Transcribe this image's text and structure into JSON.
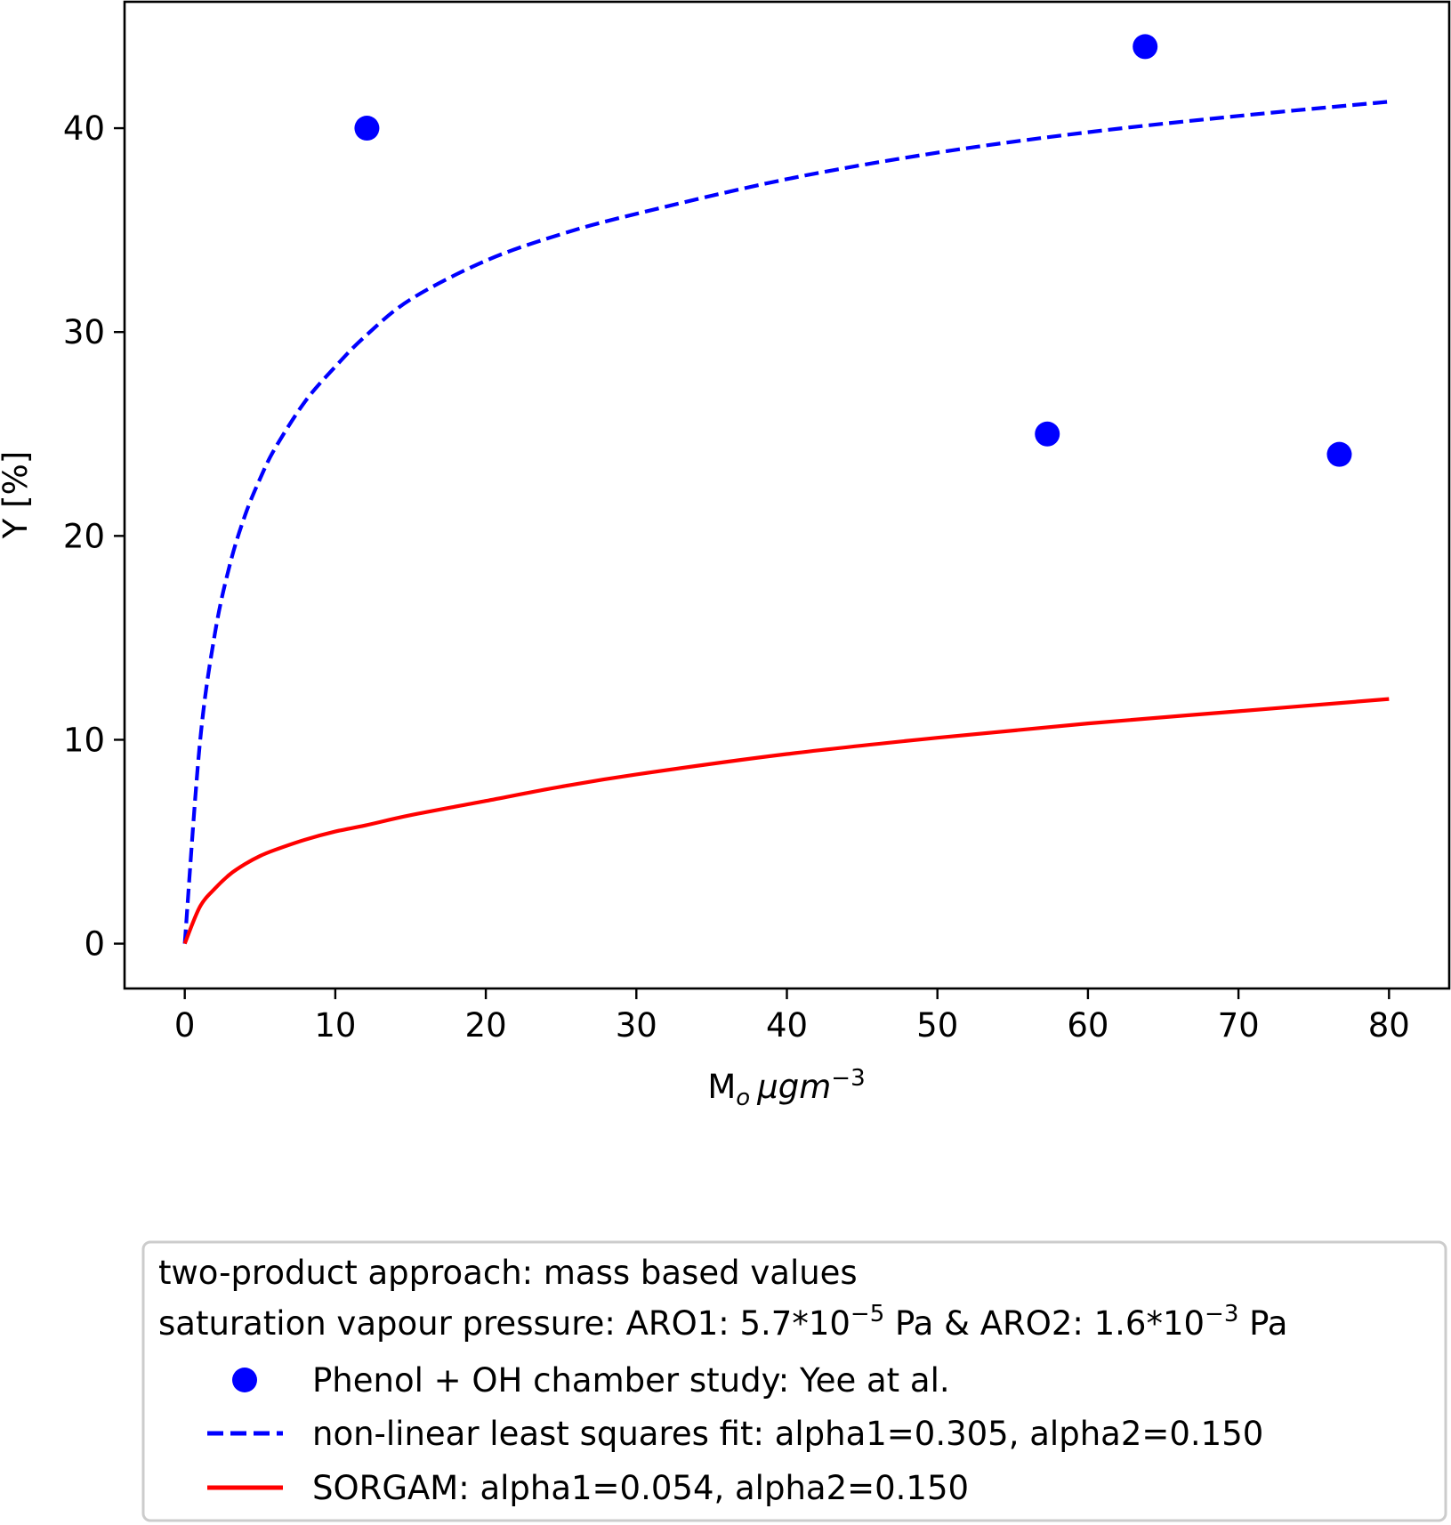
{
  "chart_data": {
    "type": "line",
    "xlabel": "M",
    "xlabel_sub": "o",
    "xlabel_unit": "μgm",
    "xlabel_unit_sup": "−3",
    "ylabel": "Y [%]",
    "xlim": [
      -4,
      84
    ],
    "ylim": [
      -2.2,
      46.2
    ],
    "xticks": [
      0,
      10,
      20,
      30,
      40,
      50,
      60,
      70,
      80
    ],
    "yticks": [
      0,
      10,
      20,
      30,
      40
    ],
    "grid": false,
    "legend": {
      "placement": "below plot",
      "title_line1": "two-product approach: mass based values",
      "title_line2": {
        "prefix": "saturation vapour pressure: ARO1: 5.7*10",
        "sup1": "−5",
        "middle": " Pa & ARO2: 1.6*10",
        "sup2": "−3",
        "suffix": " Pa"
      }
    },
    "series": [
      {
        "name": "Phenol + OH chamber study: Yee at al.",
        "kind": "scatter",
        "color": "#0000ff",
        "x": [
          12.1,
          57.3,
          63.8,
          76.7
        ],
        "y": [
          40.0,
          25.0,
          44.0,
          24.0
        ]
      },
      {
        "name": "non-linear least squares fit: alpha1=0.305, alpha2=0.150",
        "kind": "line",
        "style": "dashed",
        "color": "#0000ff",
        "x": [
          0,
          1,
          2,
          3,
          4,
          5,
          6,
          8,
          10,
          12,
          15,
          20,
          25,
          30,
          40,
          50,
          60,
          70,
          80
        ],
        "y": [
          0,
          9.8,
          15.2,
          18.6,
          21.0,
          22.8,
          24.3,
          26.6,
          28.3,
          29.8,
          31.6,
          33.5,
          34.8,
          35.8,
          37.5,
          38.8,
          39.8,
          40.6,
          41.3
        ]
      },
      {
        "name": "SORGAM: alpha1=0.054, alpha2=0.150",
        "kind": "line",
        "style": "solid",
        "color": "#ff0000",
        "x": [
          0,
          1,
          2,
          3,
          4,
          5,
          6,
          8,
          10,
          12,
          15,
          20,
          25,
          30,
          40,
          50,
          60,
          70,
          80
        ],
        "y": [
          0,
          1.8,
          2.7,
          3.4,
          3.9,
          4.3,
          4.6,
          5.1,
          5.5,
          5.8,
          6.3,
          7.0,
          7.7,
          8.3,
          9.3,
          10.1,
          10.8,
          11.4,
          12.0
        ]
      }
    ]
  }
}
